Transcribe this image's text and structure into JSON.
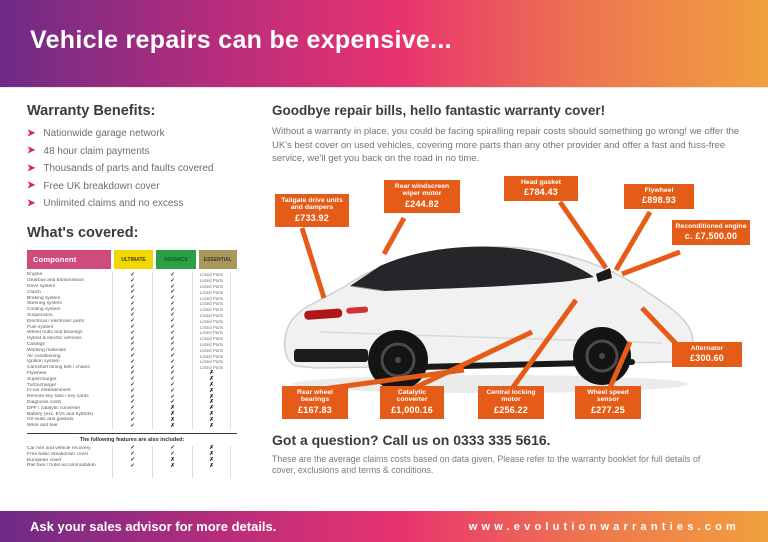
{
  "header": {
    "title": "Vehicle repairs can be expensive..."
  },
  "benefits": {
    "title": "Warranty Benefits:",
    "chevron_icon": "➤",
    "items": [
      "Nationwide garage network",
      "48 hour claim payments",
      "Thousands of parts and faults covered",
      "Free UK breakdown cover",
      "Unlimited claims and no excess"
    ]
  },
  "covered": {
    "title": "What's covered:",
    "columns": [
      "Component",
      "ULTIMATE",
      "ADVANCE",
      "ESSENTIAL"
    ],
    "mark_glyphs": {
      "check": "✓",
      "cross": "✗"
    },
    "rows": [
      {
        "name": "Engine",
        "cells": [
          "check",
          "check",
          "Listed Parts"
        ]
      },
      {
        "name": "Gearbox and transmission",
        "cells": [
          "check",
          "check",
          "Listed Parts"
        ]
      },
      {
        "name": "Drive system",
        "cells": [
          "check",
          "check",
          "Listed Parts"
        ]
      },
      {
        "name": "Clutch",
        "cells": [
          "check",
          "check",
          "Listed Parts"
        ]
      },
      {
        "name": "Braking system",
        "cells": [
          "check",
          "check",
          "Listed Parts"
        ]
      },
      {
        "name": "Steering system",
        "cells": [
          "check",
          "check",
          "Listed Parts"
        ]
      },
      {
        "name": "Cooling system",
        "cells": [
          "check",
          "check",
          "Listed Parts"
        ]
      },
      {
        "name": "Suspension",
        "cells": [
          "check",
          "check",
          "Listed Parts"
        ]
      },
      {
        "name": "Electrical / electronic parts",
        "cells": [
          "check",
          "check",
          "Listed Parts"
        ]
      },
      {
        "name": "Fuel system",
        "cells": [
          "check",
          "check",
          "Listed Parts"
        ]
      },
      {
        "name": "Wheel hubs and bearings",
        "cells": [
          "check",
          "check",
          "Listed Parts"
        ]
      },
      {
        "name": "Hybrid & electric vehicles",
        "cells": [
          "check",
          "check",
          "Listed Parts"
        ]
      },
      {
        "name": "Casings",
        "cells": [
          "check",
          "check",
          "Listed Parts"
        ]
      },
      {
        "name": "Working materials",
        "cells": [
          "check",
          "check",
          "Listed Parts"
        ]
      },
      {
        "name": "Air conditioning",
        "cells": [
          "check",
          "check",
          "Listed Parts"
        ]
      },
      {
        "name": "Ignition system",
        "cells": [
          "check",
          "check",
          "Listed Parts"
        ]
      },
      {
        "name": "Camshaft timing belt / chains",
        "cells": [
          "check",
          "check",
          "Listed Parts"
        ]
      },
      {
        "name": "Flywheel",
        "cells": [
          "check",
          "check",
          "cross"
        ]
      },
      {
        "name": "Supercharger",
        "cells": [
          "check",
          "check",
          "cross"
        ]
      },
      {
        "name": "Turbocharger",
        "cells": [
          "check",
          "check",
          "cross"
        ]
      },
      {
        "name": "In-car entertainment",
        "cells": [
          "check",
          "check",
          "cross"
        ]
      },
      {
        "name": "Remote key fobs / key cards",
        "cells": [
          "check",
          "check",
          "cross"
        ]
      },
      {
        "name": "Diagnosis costs",
        "cells": [
          "check",
          "check",
          "cross"
        ]
      },
      {
        "name": "DPF / catalytic converter",
        "cells": [
          "check",
          "cross",
          "cross"
        ]
      },
      {
        "name": "Battery (exc. EVs and hybrids)",
        "cells": [
          "check",
          "cross",
          "cross"
        ]
      },
      {
        "name": "Oil seals and gaskets",
        "cells": [
          "check",
          "cross",
          "cross"
        ]
      },
      {
        "name": "Wear and tear",
        "cells": [
          "check",
          "cross",
          "cross"
        ]
      }
    ],
    "extra_title": "The following features are also included:",
    "extra_rows": [
      {
        "name": "Car hire and vehicle recovery",
        "cells": [
          "check",
          "check",
          "cross"
        ]
      },
      {
        "name": "Free basic breakdown cover",
        "cells": [
          "check",
          "check",
          "cross"
        ]
      },
      {
        "name": "European cover",
        "cells": [
          "check",
          "cross",
          "cross"
        ]
      },
      {
        "name": "Rail fare / hotel accommodation",
        "cells": [
          "check",
          "cross",
          "cross"
        ]
      }
    ]
  },
  "intro": {
    "heading": "Goodbye repair bills, hello fantastic warranty cover!",
    "body": "Without a warranty in place, you could be facing spiralling repair costs should something go wrong! we offer the UK's best cover on used vehicles, covering more parts than any other provider and offer a fast and fuss-free service, we'll get you back on the road in no time."
  },
  "callouts": [
    {
      "id": "tailgate",
      "label": "Tailgate drive units and dampers",
      "price": "£733.92"
    },
    {
      "id": "rear_windscreen",
      "label": "Rear windscreen wiper motor",
      "price": "£244.82"
    },
    {
      "id": "head_gasket",
      "label": "Head gasket",
      "price": "£784.43"
    },
    {
      "id": "flywheel",
      "label": "Flywheel",
      "price": "£898.93"
    },
    {
      "id": "recon_engine",
      "label": "Reconditioned engine",
      "price": "c. £7,500.00"
    },
    {
      "id": "alternator",
      "label": "Alternator",
      "price": "£300.60"
    },
    {
      "id": "rear_wheel_bearings",
      "label": "Rear wheel bearings",
      "price": "£167.83"
    },
    {
      "id": "catalytic",
      "label": "Catalytic converter",
      "price": "£1,000.16"
    },
    {
      "id": "central_locking",
      "label": "Central locking motor",
      "price": "£256.22"
    },
    {
      "id": "wheel_speed",
      "label": "Wheel speed sensor",
      "price": "£277.25"
    }
  ],
  "question": {
    "heading": "Got a question? Call us on 0333 335 5616.",
    "note": "These are the average claims costs based on data given, Please refer to the warranty booklet for full details of cover, exclusions and terms & conditions."
  },
  "footer": {
    "left": "Ask your sales advisor for more details.",
    "website": "www.evolutionwarranties.com"
  },
  "colors": {
    "gradient_purple": "#6e2b86",
    "gradient_pink": "#e8336e",
    "gradient_orange": "#f0a03e",
    "callout_orange": "#e45c17",
    "table_pink": "#cf4b7c",
    "tier_yellow": "#f2d600",
    "tier_green": "#2aa146",
    "tier_tan": "#a9985b",
    "chevron_pink": "#d6246e"
  }
}
